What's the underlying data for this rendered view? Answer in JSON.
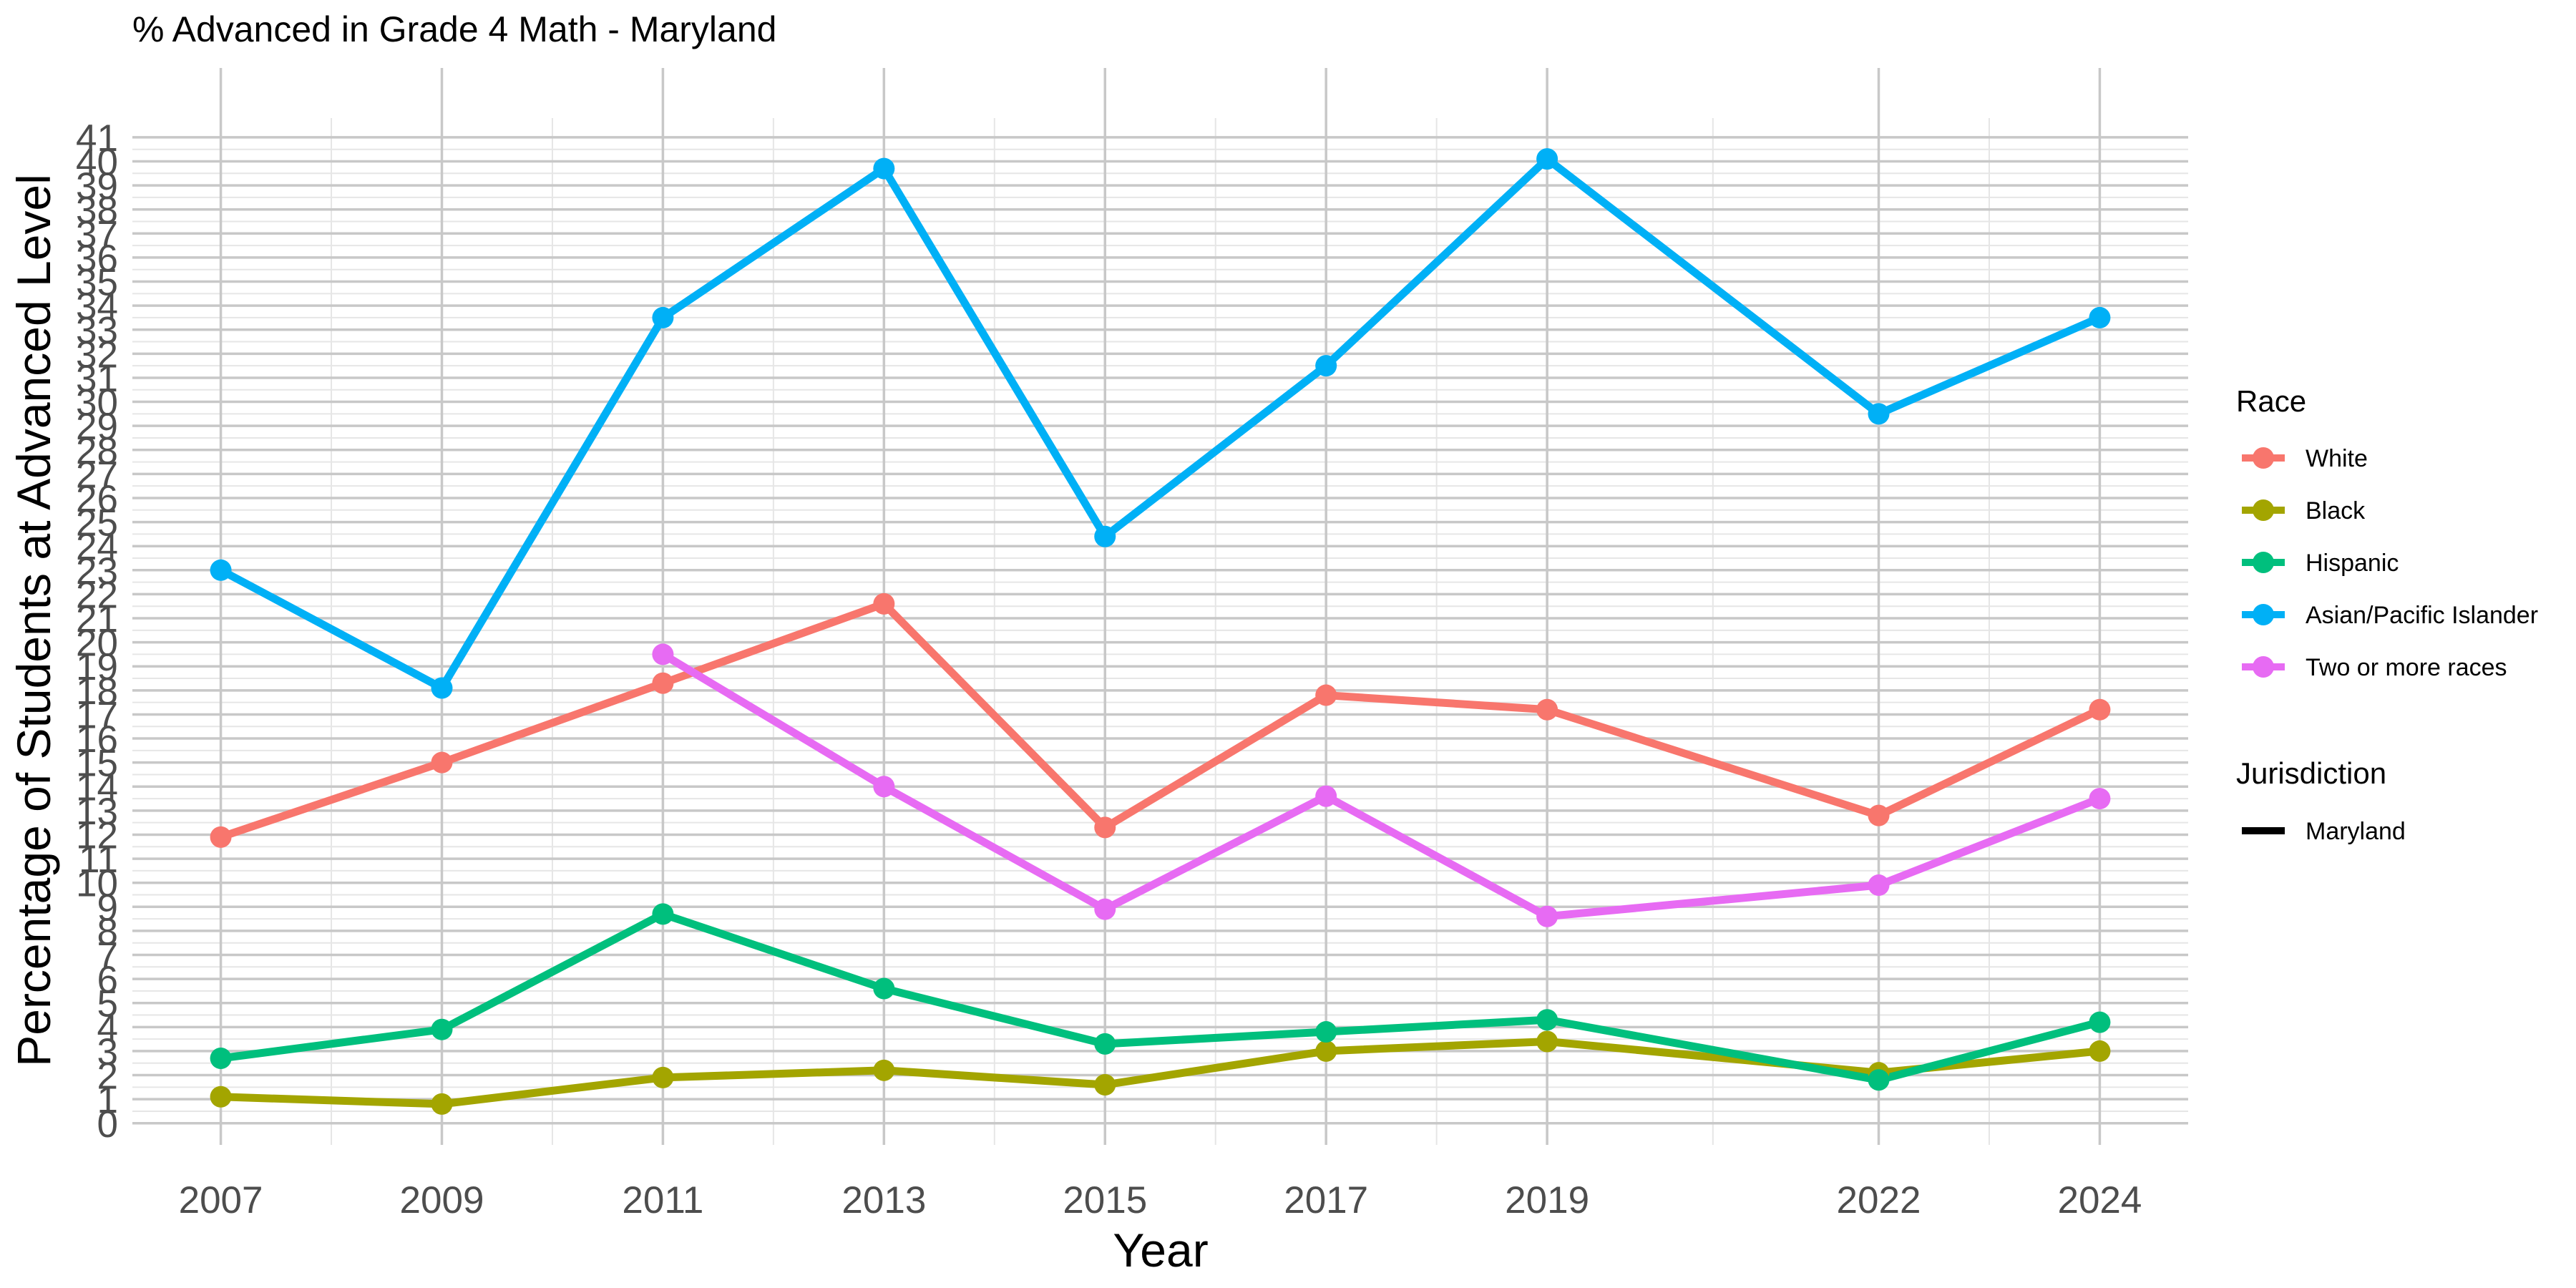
{
  "chart_data": {
    "type": "line",
    "title": "% Advanced in Grade 4 Math - Maryland",
    "xlabel": "Year",
    "ylabel": "Percentage of Students at Advanced Level",
    "x": [
      2007,
      2009,
      2011,
      2013,
      2015,
      2017,
      2019,
      2022,
      2024
    ],
    "x_tick_labels": [
      "2007",
      "2009",
      "2011",
      "2013",
      "2015",
      "2017",
      "2019",
      "2022",
      "2024"
    ],
    "xlim": [
      2006.2,
      2024.8
    ],
    "ylim": [
      -0.9,
      41.8
    ],
    "y_ticks": [
      0,
      1,
      2,
      3,
      4,
      5,
      6,
      7,
      8,
      9,
      10,
      11,
      12,
      13,
      14,
      15,
      16,
      17,
      18,
      19,
      20,
      21,
      22,
      23,
      24,
      25,
      26,
      27,
      28,
      29,
      30,
      31,
      32,
      33,
      34,
      35,
      36,
      37,
      38,
      39,
      40,
      41
    ],
    "grid": true,
    "legend_position": "right",
    "legend_title": "Race",
    "series": [
      {
        "name": "White",
        "color": "#F8766D",
        "x": [
          2007,
          2009,
          2011,
          2013,
          2015,
          2017,
          2019,
          2022,
          2024
        ],
        "values": [
          11.9,
          15.0,
          18.3,
          21.6,
          12.3,
          17.8,
          17.2,
          12.8,
          17.2
        ]
      },
      {
        "name": "Black",
        "color": "#A3A500",
        "x": [
          2007,
          2009,
          2011,
          2013,
          2015,
          2017,
          2019,
          2022,
          2024
        ],
        "values": [
          1.1,
          0.8,
          1.9,
          2.2,
          1.6,
          3.0,
          3.4,
          2.1,
          3.0
        ]
      },
      {
        "name": "Hispanic",
        "color": "#00BF7D",
        "x": [
          2007,
          2009,
          2011,
          2013,
          2015,
          2017,
          2019,
          2022,
          2024
        ],
        "values": [
          2.7,
          3.9,
          8.7,
          5.6,
          3.3,
          3.8,
          4.3,
          1.8,
          4.2
        ]
      },
      {
        "name": "Asian/Pacific Islander",
        "color": "#00B0F6",
        "x": [
          2007,
          2009,
          2011,
          2013,
          2015,
          2017,
          2019,
          2022,
          2024
        ],
        "values": [
          23.0,
          18.1,
          33.5,
          39.7,
          24.4,
          31.5,
          40.1,
          29.5,
          33.5
        ]
      },
      {
        "name": "Two or more races",
        "color": "#E76BF3",
        "x": [
          2011,
          2013,
          2015,
          2017,
          2019,
          2022,
          2024
        ],
        "values": [
          19.5,
          14.0,
          8.9,
          13.6,
          8.6,
          9.9,
          13.5
        ]
      }
    ],
    "linetype_legend": {
      "title": "Jurisdiction",
      "items": [
        {
          "name": "Maryland",
          "color": "#000000"
        }
      ]
    }
  }
}
